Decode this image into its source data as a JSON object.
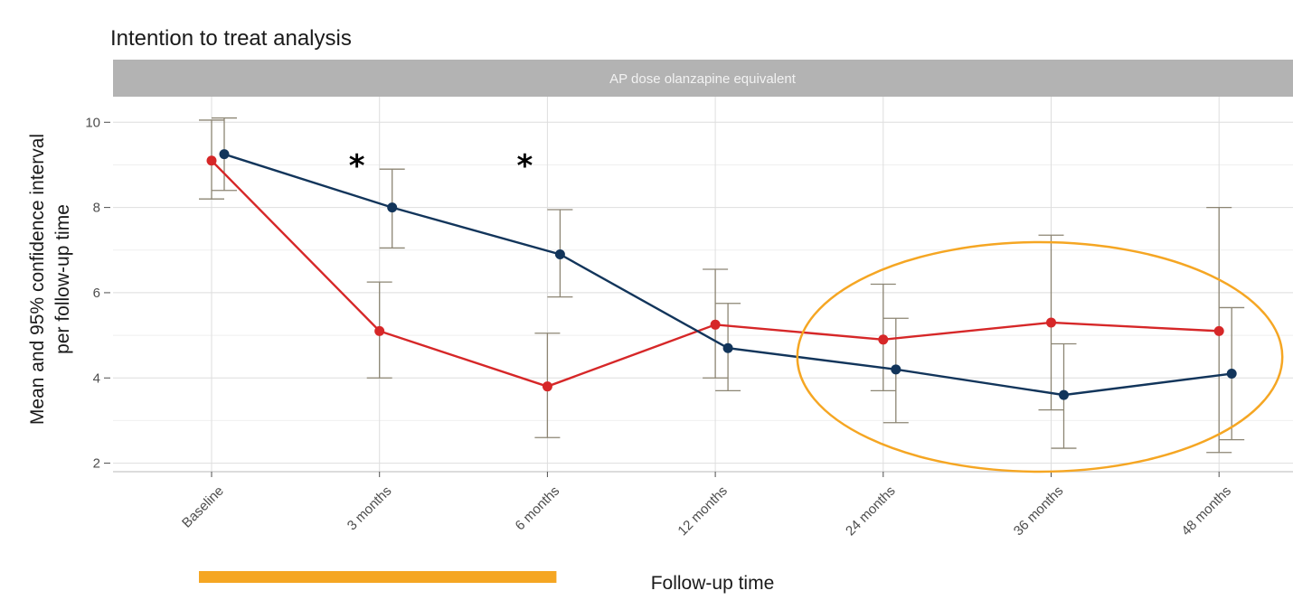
{
  "chart_data": {
    "type": "line",
    "title": "Intention to treat analysis",
    "facet_label": "AP dose olanzapine equivalent",
    "xlabel": "Follow-up time",
    "ylabel_lines": [
      "Mean and 95% confidence interval",
      "per follow-up time"
    ],
    "categories": [
      "Baseline",
      "3 months",
      "6 months",
      "12 months",
      "24 months",
      "36 months",
      "48 months"
    ],
    "ylim": [
      1.8,
      10.6
    ],
    "yticks": [
      2,
      4,
      6,
      8,
      10
    ],
    "grid": true,
    "series": [
      {
        "color": "#d62728",
        "values": [
          9.1,
          5.1,
          3.8,
          5.25,
          4.9,
          5.3,
          5.1
        ],
        "ci_low": [
          8.2,
          4.0,
          2.6,
          4.0,
          3.7,
          3.25,
          2.25
        ],
        "ci_high": [
          10.05,
          6.25,
          5.05,
          6.55,
          6.2,
          7.35,
          8.0
        ]
      },
      {
        "color": "#12355b",
        "values": [
          9.25,
          8.0,
          6.9,
          4.7,
          4.2,
          3.6,
          4.1
        ],
        "ci_low": [
          8.4,
          7.05,
          5.9,
          3.7,
          2.95,
          2.35,
          2.55
        ],
        "ci_high": [
          10.1,
          8.9,
          7.95,
          5.75,
          5.4,
          4.8,
          5.65
        ]
      }
    ],
    "significance_markers": [
      {
        "category": "3 months",
        "text": "*"
      },
      {
        "category": "6 months",
        "text": "*"
      }
    ],
    "annotations": {
      "ellipse_color": "#f5a623",
      "ellipse_spans": [
        "24 months",
        "48 months"
      ],
      "underline_color": "#f5a623",
      "underline_spans": [
        "Baseline",
        "6 months"
      ]
    }
  }
}
